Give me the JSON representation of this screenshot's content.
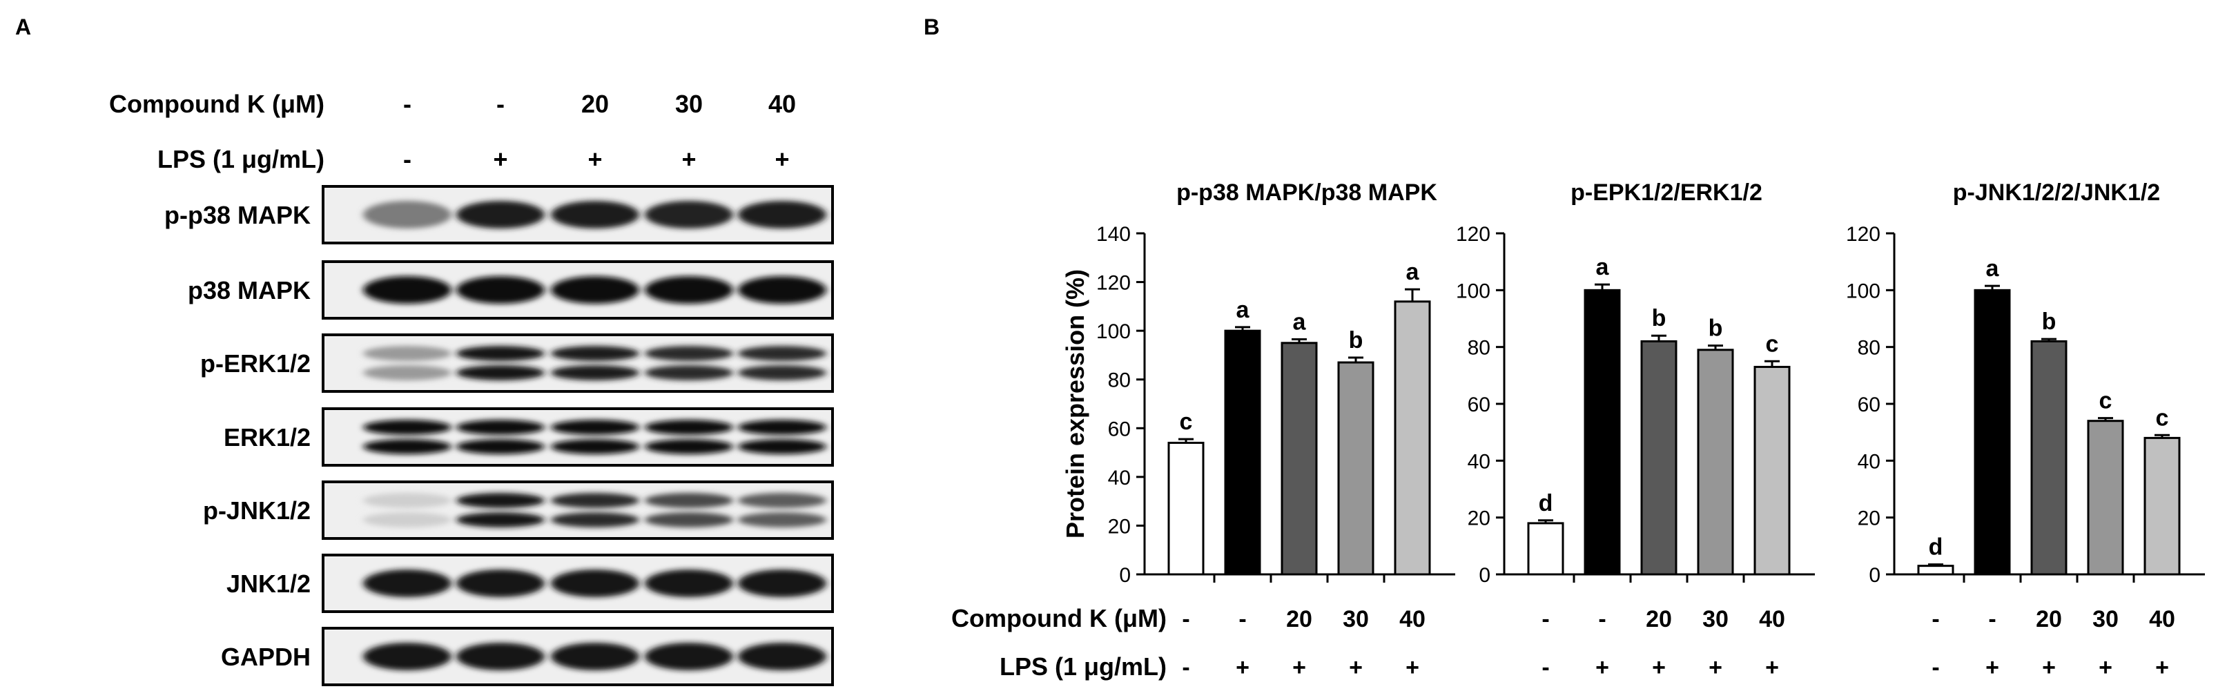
{
  "panelA": {
    "label": "A",
    "treatments": [
      {
        "label": "Compound K (μM)",
        "values": [
          "-",
          "-",
          "20",
          "30",
          "40"
        ]
      },
      {
        "label": "LPS (1 μg/mL)",
        "values": [
          "-",
          "+",
          "+",
          "+",
          "+"
        ]
      }
    ],
    "blots": [
      {
        "label": "p-p38 MAPK",
        "pattern": "single",
        "intensity": [
          0.45,
          0.9,
          0.9,
          0.88,
          0.92
        ]
      },
      {
        "label": "p38 MAPK",
        "pattern": "single",
        "intensity": [
          1.0,
          1.0,
          1.0,
          1.0,
          1.0
        ]
      },
      {
        "label": "p-ERK1/2",
        "pattern": "double",
        "intensity": [
          0.3,
          0.95,
          0.9,
          0.85,
          0.85
        ]
      },
      {
        "label": "ERK1/2",
        "pattern": "double",
        "intensity": [
          1.0,
          1.0,
          1.0,
          1.0,
          1.0
        ]
      },
      {
        "label": "p-JNK1/2",
        "pattern": "double",
        "intensity": [
          0.04,
          0.95,
          0.85,
          0.7,
          0.6
        ]
      },
      {
        "label": "JNK1/2",
        "pattern": "single",
        "intensity": [
          0.95,
          0.95,
          0.95,
          0.95,
          0.95
        ]
      },
      {
        "label": "GAPDH",
        "pattern": "single",
        "intensity": [
          0.95,
          0.95,
          0.95,
          0.95,
          0.95
        ]
      }
    ]
  },
  "panelB": {
    "label": "B",
    "treatments": [
      {
        "label": "Compound K (μM)",
        "values": [
          "-",
          "-",
          "20",
          "30",
          "40"
        ]
      },
      {
        "label": "LPS (1 μg/mL)",
        "values": [
          "-",
          "+",
          "+",
          "+",
          "+"
        ]
      }
    ]
  },
  "chart_data": [
    {
      "type": "bar",
      "title": "p-p38 MAPK/p38 MAPK",
      "ylabel": "Protein expression (%)",
      "ylim": [
        0,
        140
      ],
      "yticks": [
        0,
        20,
        40,
        60,
        80,
        100,
        120,
        140
      ],
      "values": [
        54,
        100,
        95,
        87,
        112
      ],
      "errors": [
        1.5,
        1.5,
        1.5,
        2,
        5
      ],
      "letters": [
        "c",
        "a",
        "a",
        "b",
        "a"
      ],
      "colors": [
        "#ffffff",
        "#000000",
        "#595959",
        "#969696",
        "#c0c0c0"
      ]
    },
    {
      "type": "bar",
      "title": "p-EPK1/2/ERK1/2",
      "ylabel": "",
      "ylim": [
        0,
        120
      ],
      "yticks": [
        0,
        20,
        40,
        60,
        80,
        100,
        120
      ],
      "values": [
        18,
        100,
        82,
        79,
        73
      ],
      "errors": [
        1,
        2,
        2,
        1.5,
        2
      ],
      "letters": [
        "d",
        "a",
        "b",
        "b",
        "c"
      ],
      "colors": [
        "#ffffff",
        "#000000",
        "#595959",
        "#969696",
        "#c0c0c0"
      ]
    },
    {
      "type": "bar",
      "title": "p-JNK1/2/2/JNK1/2",
      "ylabel": "",
      "ylim": [
        0,
        120
      ],
      "yticks": [
        0,
        20,
        40,
        60,
        80,
        100,
        120
      ],
      "values": [
        3,
        100,
        82,
        54,
        48
      ],
      "errors": [
        0.5,
        1.5,
        0.8,
        1,
        1
      ],
      "letters": [
        "d",
        "a",
        "b",
        "c",
        "c"
      ],
      "colors": [
        "#ffffff",
        "#000000",
        "#595959",
        "#969696",
        "#c0c0c0"
      ]
    }
  ]
}
